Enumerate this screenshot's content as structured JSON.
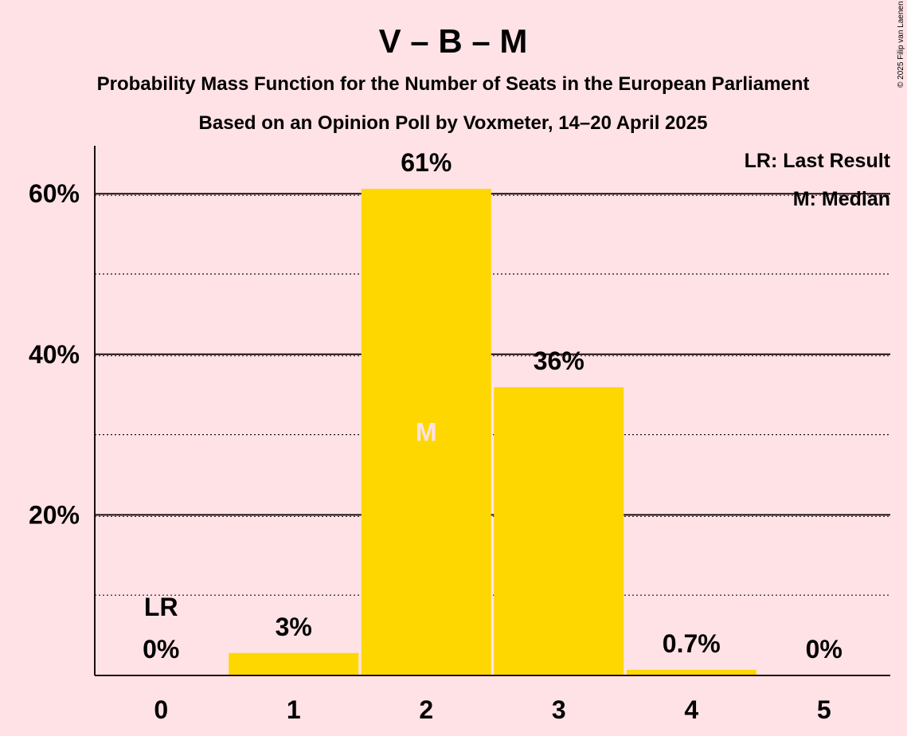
{
  "title": "V – B – M",
  "subtitle1": "Probability Mass Function for the Number of Seats in the European Parliament",
  "subtitle2": "Based on an Opinion Poll by Voxmeter, 14–20 April 2025",
  "copyright": "© 2025 Filip van Laenen",
  "legend": {
    "lr": "LR: Last Result",
    "median": "M: Median"
  },
  "colors": {
    "background": "#FFE2E6",
    "bar": "#FFD700",
    "text": "#1a0d0f",
    "median_marker": "#FFE2E6"
  },
  "chart_data": {
    "type": "bar",
    "categories": [
      "0",
      "1",
      "2",
      "3",
      "4",
      "5"
    ],
    "values": [
      0,
      2.8,
      60.6,
      35.9,
      0.7,
      0
    ],
    "data_labels": [
      "0%",
      "3%",
      "61%",
      "36%",
      "0.7%",
      "0%"
    ],
    "yticks": [
      20,
      40,
      60
    ],
    "ytick_labels": [
      "20%",
      "40%",
      "60%"
    ],
    "minor_gridlines": [
      10,
      30,
      50
    ],
    "ylim": [
      0,
      66
    ],
    "last_result_seat": "0",
    "last_result_label": "LR",
    "median_seat": "2",
    "median_label": "M",
    "legend_position": "top-right"
  }
}
